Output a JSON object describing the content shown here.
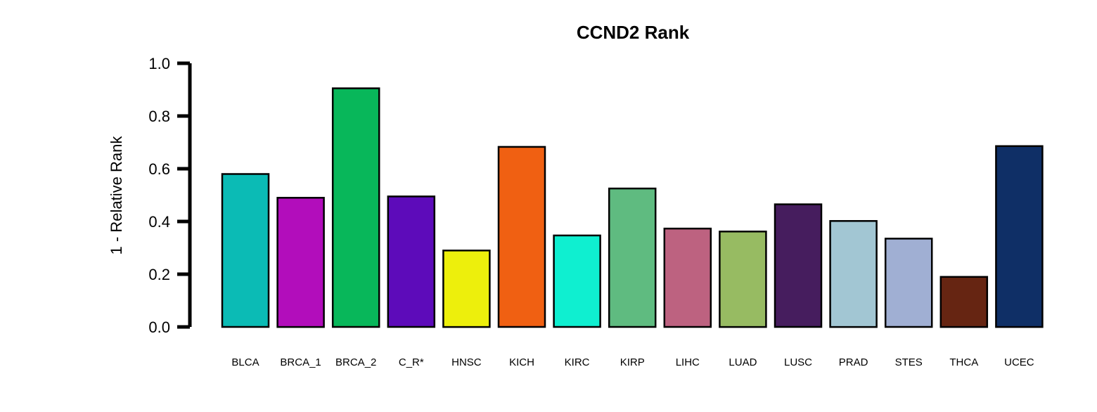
{
  "chart_data": {
    "type": "bar",
    "title": "CCND2 Rank",
    "xlabel": "",
    "ylabel": "1 - Relative Rank",
    "ylim": [
      0,
      1.0
    ],
    "yticks": [
      "0.0",
      "0.2",
      "0.4",
      "0.6",
      "0.8",
      "1.0"
    ],
    "grid": false,
    "legend": "none",
    "categories": [
      "BLCA",
      "BRCA_1",
      "BRCA_2",
      "C_R*",
      "HNSC",
      "KICH",
      "KIRC",
      "KIRP",
      "LIHC",
      "LUAD",
      "LUSC",
      "PRAD",
      "STES",
      "THCA",
      "UCEC"
    ],
    "values": [
      0.58,
      0.49,
      0.905,
      0.495,
      0.29,
      0.683,
      0.347,
      0.525,
      0.373,
      0.362,
      0.465,
      0.402,
      0.335,
      0.19,
      0.686
    ],
    "colors": [
      "#0BBBB5",
      "#B20DBB",
      "#08B75A",
      "#5D0BBA",
      "#EDEF0C",
      "#F06012",
      "#0FEFD0",
      "#5FBB80",
      "#BD6280",
      "#97BB62",
      "#461D5E",
      "#A2C6D3",
      "#A0AFD3",
      "#662512",
      "#0F2F66"
    ]
  }
}
